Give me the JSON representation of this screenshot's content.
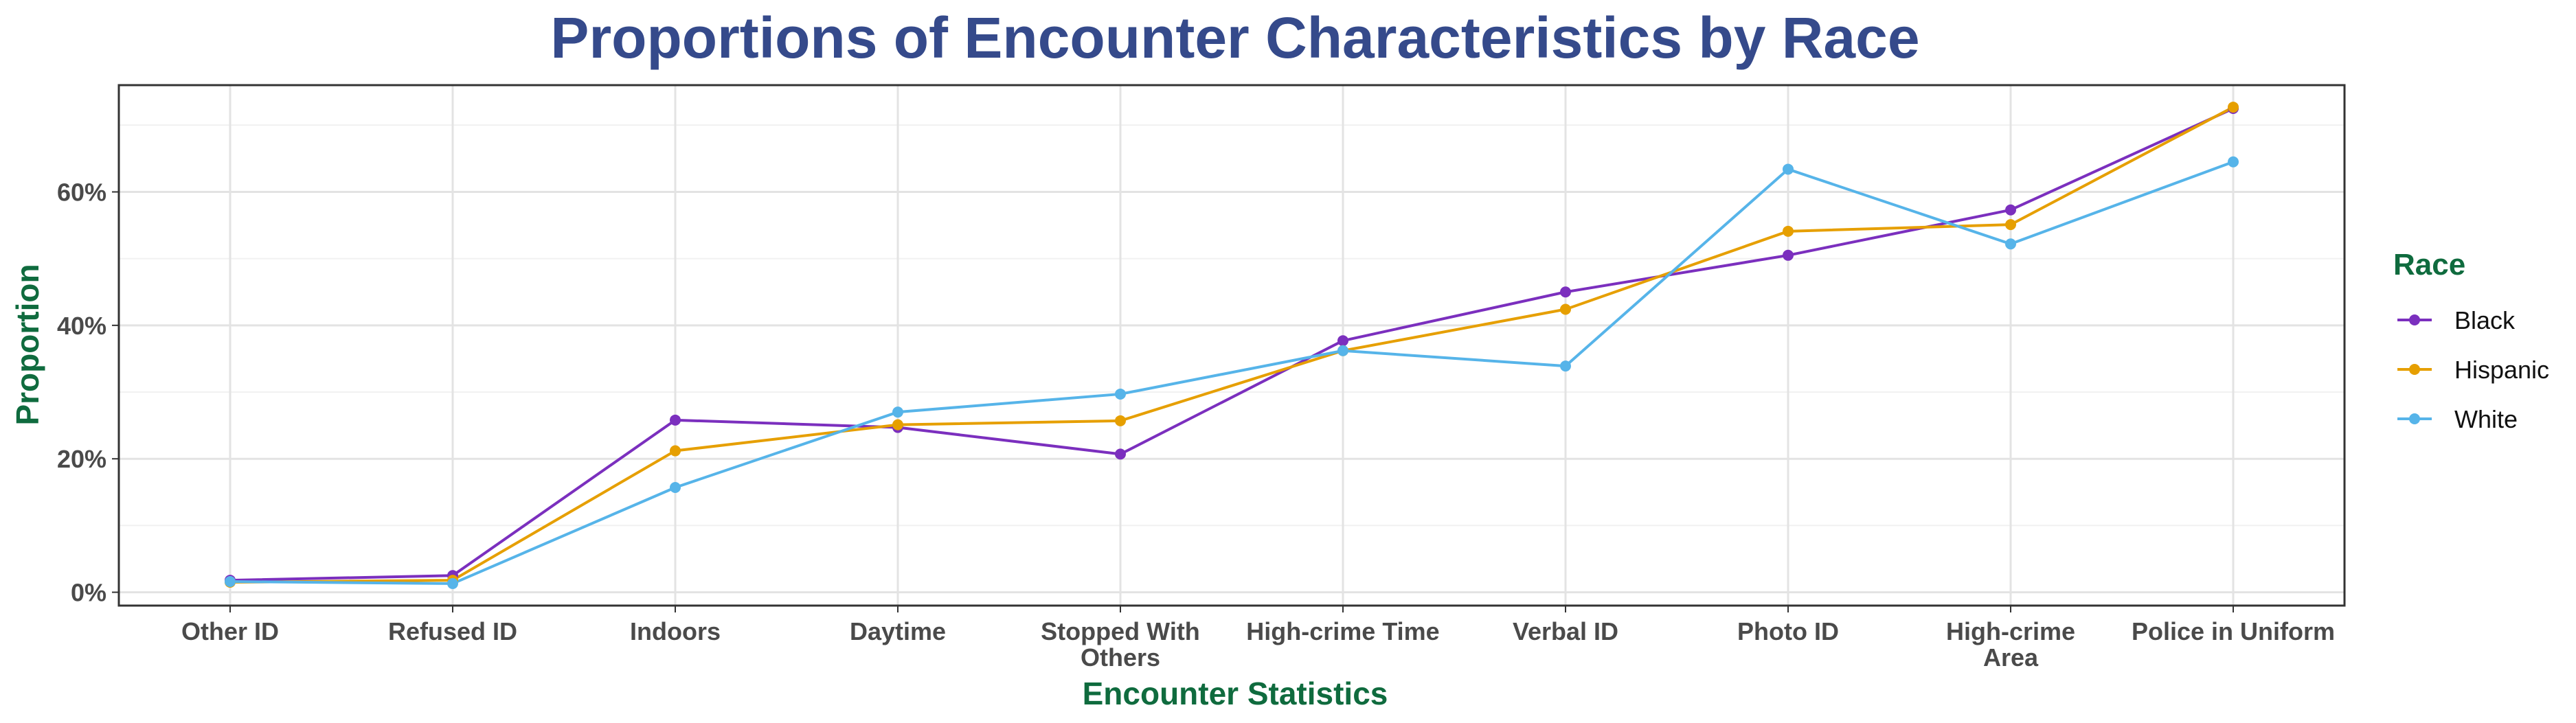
{
  "chart_data": {
    "type": "line",
    "title": "Proportions of Encounter Characteristics by Race",
    "xlabel": "Encounter Statistics",
    "ylabel": "Proportion",
    "categories": [
      [
        "Other ID"
      ],
      [
        "Refused ID"
      ],
      [
        "Indoors"
      ],
      [
        "Daytime"
      ],
      [
        "Stopped With",
        "Others"
      ],
      [
        "High-crime Time"
      ],
      [
        "Verbal ID"
      ],
      [
        "Photo ID"
      ],
      [
        "High-crime",
        "Area"
      ],
      [
        "Police in Uniform"
      ]
    ],
    "ylim": [
      -0.02,
      0.76
    ],
    "yticks": [
      0,
      0.2,
      0.4,
      0.6
    ],
    "ytick_labels": [
      "0%",
      "20%",
      "40%",
      "60%"
    ],
    "grid": true,
    "legend": {
      "title": "Race",
      "position": "right"
    },
    "series": [
      {
        "name": "Black",
        "color": "#7B2FBE",
        "values": [
          0.018,
          0.025,
          0.258,
          0.247,
          0.207,
          0.377,
          0.45,
          0.505,
          0.573,
          0.725
        ]
      },
      {
        "name": "Hispanic",
        "color": "#E69F00",
        "values": [
          0.015,
          0.018,
          0.212,
          0.251,
          0.257,
          0.362,
          0.424,
          0.541,
          0.551,
          0.727
        ]
      },
      {
        "name": "White",
        "color": "#56B4E9",
        "values": [
          0.016,
          0.013,
          0.157,
          0.27,
          0.297,
          0.362,
          0.339,
          0.634,
          0.522,
          0.645
        ]
      }
    ]
  },
  "colors": {
    "title": "#354A8B",
    "axis_title": "#0F6B3E",
    "legend_title": "#0F6B3E"
  }
}
